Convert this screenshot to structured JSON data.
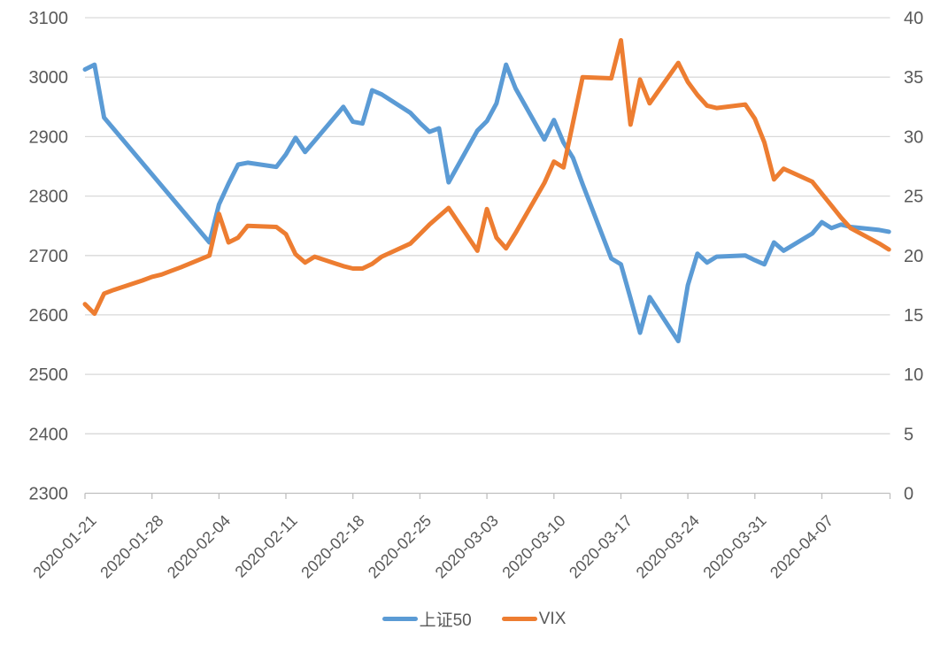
{
  "chart_data": {
    "type": "line",
    "title": "",
    "grid": "horizontal",
    "legend_position": "bottom",
    "x_axis": {
      "type": "date",
      "tick_labels": [
        "2020-01-21",
        "2020-01-28",
        "2020-02-04",
        "2020-02-11",
        "2020-02-18",
        "2020-02-25",
        "2020-03-03",
        "2020-03-10",
        "2020-03-17",
        "2020-03-24",
        "2020-03-31",
        "2020-04-07"
      ]
    },
    "y_axis_left": {
      "min": 2300,
      "max": 3100,
      "step": 100,
      "tick_labels": [
        "3100",
        "3000",
        "2900",
        "2800",
        "2700",
        "2600",
        "2500",
        "2400",
        "2300"
      ]
    },
    "y_axis_right": {
      "min": 0,
      "max": 40,
      "step": 5,
      "tick_labels": [
        "40",
        "35",
        "30",
        "25",
        "20",
        "15",
        "10",
        "5",
        "0"
      ]
    },
    "dates": [
      "2020-01-21",
      "2020-01-22",
      "2020-01-23",
      "2020-01-24",
      "2020-01-27",
      "2020-01-28",
      "2020-01-29",
      "2020-01-30",
      "2020-01-31",
      "2020-02-03",
      "2020-02-04",
      "2020-02-05",
      "2020-02-06",
      "2020-02-07",
      "2020-02-10",
      "2020-02-11",
      "2020-02-12",
      "2020-02-13",
      "2020-02-14",
      "2020-02-17",
      "2020-02-18",
      "2020-02-19",
      "2020-02-20",
      "2020-02-21",
      "2020-02-24",
      "2020-02-25",
      "2020-02-26",
      "2020-02-27",
      "2020-02-28",
      "2020-03-02",
      "2020-03-03",
      "2020-03-04",
      "2020-03-05",
      "2020-03-06",
      "2020-03-09",
      "2020-03-10",
      "2020-03-11",
      "2020-03-12",
      "2020-03-13",
      "2020-03-16",
      "2020-03-17",
      "2020-03-18",
      "2020-03-19",
      "2020-03-20",
      "2020-03-23",
      "2020-03-24",
      "2020-03-25",
      "2020-03-26",
      "2020-03-27",
      "2020-03-30",
      "2020-03-31",
      "2020-04-01",
      "2020-04-02",
      "2020-04-03",
      "2020-04-06",
      "2020-04-07",
      "2020-04-08",
      "2020-04-09",
      "2020-04-10",
      "2020-04-13",
      "2020-04-14"
    ],
    "series": [
      {
        "id": "sse50",
        "name": "上证50",
        "axis": "left",
        "color": "#5B9BD5",
        "values": [
          3013,
          3021,
          2932,
          null,
          null,
          null,
          null,
          null,
          null,
          2722,
          2786,
          2821,
          2853,
          2856,
          2849,
          2870,
          2898,
          2874,
          2893,
          2950,
          2925,
          2922,
          2978,
          2971,
          2940,
          2923,
          2908,
          2914,
          2823,
          2910,
          2926,
          2956,
          3021,
          2981,
          2895,
          2928,
          2890,
          2864,
          2820,
          2695,
          2685,
          2628,
          2570,
          2630,
          2556,
          2650,
          2703,
          2688,
          2698,
          2700,
          2692,
          2685,
          2722,
          2708,
          2737,
          2756,
          2746,
          2752,
          2748,
          2743,
          2740
        ]
      },
      {
        "id": "vix",
        "name": "VIX",
        "axis": "right",
        "color": "#ED7D31",
        "values": [
          15.9,
          15.1,
          16.8,
          17.1,
          17.9,
          18.2,
          18.4,
          18.7,
          19.0,
          20.0,
          23.5,
          21.1,
          21.5,
          22.5,
          22.4,
          21.8,
          20.1,
          19.4,
          19.9,
          19.1,
          18.9,
          18.9,
          19.3,
          19.9,
          21.0,
          21.8,
          22.6,
          23.3,
          24.0,
          20.4,
          23.9,
          21.5,
          20.6,
          21.9,
          26.1,
          27.9,
          27.4,
          31.2,
          35.0,
          34.9,
          38.1,
          31.0,
          34.8,
          32.8,
          36.2,
          34.6,
          33.5,
          32.6,
          32.4,
          32.7,
          31.5,
          29.5,
          26.4,
          27.3,
          26.2,
          25.2,
          24.2,
          23.2,
          22.3,
          21.0,
          20.5
        ]
      }
    ]
  },
  "legend": {
    "items": [
      {
        "label": "上证50"
      },
      {
        "label": "VIX"
      }
    ]
  },
  "colors": {
    "series_blue": "#5B9BD5",
    "series_orange": "#ED7D31",
    "gridline": "#D9D9D9",
    "axis_line": "#BFBFBF",
    "text": "#595959",
    "background": "#FFFFFF"
  }
}
